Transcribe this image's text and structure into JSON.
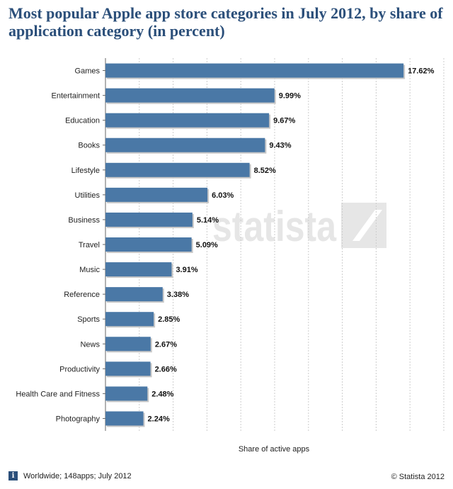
{
  "title": "Most popular Apple app store categories in July 2012, by share of application category (in percent)",
  "footer": {
    "source_icon": "info-icon",
    "source": "Worldwide; 148apps; July 2012",
    "copyright": "© Statista 2012"
  },
  "watermark": "statista",
  "chart_data": {
    "type": "bar",
    "orientation": "horizontal",
    "title": "Most popular Apple app store categories in July 2012, by share of application category (in percent)",
    "xlabel": "Share of active apps",
    "ylabel": "",
    "xlim": [
      0,
      20
    ],
    "grid": true,
    "bar_color": "#4a78a6",
    "categories": [
      "Games",
      "Entertainment",
      "Education",
      "Books",
      "Lifestyle",
      "Utilities",
      "Business",
      "Travel",
      "Music",
      "Reference",
      "Sports",
      "News",
      "Productivity",
      "Health Care and Fitness",
      "Photography"
    ],
    "values": [
      17.62,
      9.99,
      9.67,
      9.43,
      8.52,
      6.03,
      5.14,
      5.09,
      3.91,
      3.38,
      2.85,
      2.67,
      2.66,
      2.48,
      2.24
    ],
    "value_labels": [
      "17.62%",
      "9.99%",
      "9.67%",
      "9.43%",
      "8.52%",
      "6.03%",
      "5.14%",
      "5.09%",
      "3.91%",
      "3.38%",
      "2.85%",
      "2.67%",
      "2.66%",
      "2.48%",
      "2.24%"
    ]
  }
}
